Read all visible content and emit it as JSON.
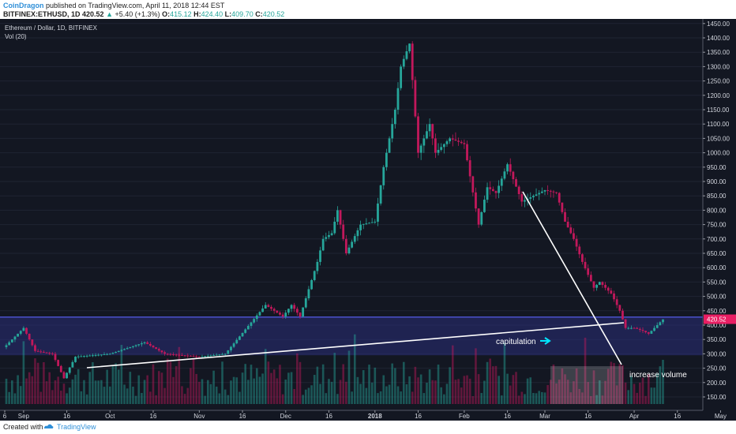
{
  "header": {
    "author": "CoinDragon",
    "published_text": "published on TradingView.com, April 11, 2018 12:44 EST",
    "symbol": "BITFINEX:ETHUSD, 1D",
    "last": "420.52",
    "change": "+5.40 (+1.3%)",
    "o_label": "O:",
    "o_value": "415.12",
    "h_label": "H:",
    "h_value": "424.40",
    "l_label": "L:",
    "l_value": "409.70",
    "c_label": "C:",
    "c_value": "420.52"
  },
  "chart_data": {
    "type": "candlestick",
    "title": "Ethereum / Dollar, 1D, BITFINEX",
    "indicator": "Vol (20)",
    "ylim": [
      135,
      1490
    ],
    "y_ticks": [
      150,
      200,
      250,
      300,
      350,
      400,
      450,
      500,
      550,
      600,
      650,
      700,
      750,
      800,
      850,
      900,
      950,
      1000,
      1050,
      1100,
      1150,
      1200,
      1250,
      1300,
      1350,
      1400,
      1450
    ],
    "x_ticks": [
      "6",
      "Sep",
      "16",
      "Oct",
      "16",
      "Nov",
      "16",
      "Dec",
      "16",
      "2018",
      "16",
      "Feb",
      "16",
      "Mar",
      "16",
      "Apr",
      "16",
      "May"
    ],
    "last_price": "420.52",
    "price_path": [
      [
        "2017-08-26",
        330
      ],
      [
        "2017-09-01",
        390
      ],
      [
        "2017-09-05",
        310
      ],
      [
        "2017-09-11",
        300
      ],
      [
        "2017-09-15",
        215
      ],
      [
        "2017-09-19",
        290
      ],
      [
        "2017-10-01",
        300
      ],
      [
        "2017-10-13",
        340
      ],
      [
        "2017-10-20",
        300
      ],
      [
        "2017-11-01",
        290
      ],
      [
        "2017-11-10",
        300
      ],
      [
        "2017-11-24",
        470
      ],
      [
        "2017-11-30",
        430
      ],
      [
        "2017-12-03",
        470
      ],
      [
        "2017-12-06",
        430
      ],
      [
        "2017-12-12",
        620
      ],
      [
        "2017-12-14",
        700
      ],
      [
        "2017-12-17",
        720
      ],
      [
        "2017-12-19",
        800
      ],
      [
        "2017-12-22",
        650
      ],
      [
        "2017-12-27",
        750
      ],
      [
        "2018-01-01",
        760
      ],
      [
        "2018-01-04",
        950
      ],
      [
        "2018-01-08",
        1150
      ],
      [
        "2018-01-10",
        1300
      ],
      [
        "2018-01-13",
        1380
      ],
      [
        "2018-01-16",
        1000
      ],
      [
        "2018-01-20",
        1100
      ],
      [
        "2018-01-22",
        1000
      ],
      [
        "2018-01-27",
        1050
      ],
      [
        "2018-02-01",
        1030
      ],
      [
        "2018-02-06",
        750
      ],
      [
        "2018-02-09",
        880
      ],
      [
        "2018-02-12",
        860
      ],
      [
        "2018-02-16",
        960
      ],
      [
        "2018-02-21",
        830
      ],
      [
        "2018-02-25",
        850
      ],
      [
        "2018-03-01",
        870
      ],
      [
        "2018-03-05",
        860
      ],
      [
        "2018-03-08",
        760
      ],
      [
        "2018-03-11",
        700
      ],
      [
        "2018-03-14",
        620
      ],
      [
        "2018-03-18",
        530
      ],
      [
        "2018-03-20",
        550
      ],
      [
        "2018-03-24",
        510
      ],
      [
        "2018-03-27",
        450
      ],
      [
        "2018-03-29",
        390
      ],
      [
        "2018-04-01",
        390
      ],
      [
        "2018-04-04",
        380
      ],
      [
        "2018-04-06",
        370
      ],
      [
        "2018-04-09",
        400
      ],
      [
        "2018-04-11",
        420
      ]
    ],
    "annotations": {
      "capitulation": "capitulation",
      "increase_volume": "increase volume"
    },
    "colors": {
      "background": "#131722",
      "up": "#26a69a",
      "down": "#c2185b",
      "zone": "#2a2e78",
      "line": "#ffffff",
      "cyan": "#00e5ff",
      "price_label": "#e91e63"
    }
  },
  "footer": {
    "created_with": "Created with",
    "brand": "TradingView"
  }
}
